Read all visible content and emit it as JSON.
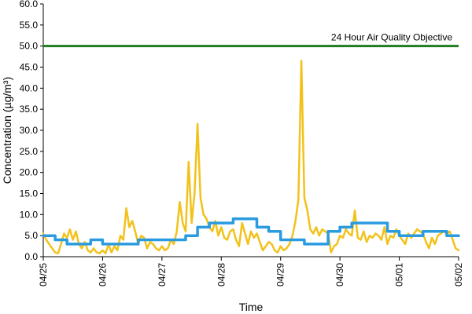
{
  "chart_data": {
    "type": "line",
    "xlabel": "Time",
    "ylabel": "Concentration (µg/m³)",
    "ylim": [
      0,
      60
    ],
    "y_ticks": [
      "0.0",
      "5.0",
      "10.0",
      "15.0",
      "20.0",
      "25.0",
      "30.0",
      "35.0",
      "40.0",
      "45.0",
      "50.0",
      "55.0",
      "60.0"
    ],
    "xlim": [
      0,
      7
    ],
    "x_ticks": [
      {
        "x": 0,
        "label": "04/25"
      },
      {
        "x": 1,
        "label": "04/26"
      },
      {
        "x": 2,
        "label": "04/27"
      },
      {
        "x": 3,
        "label": "04/28"
      },
      {
        "x": 4,
        "label": "04/29"
      },
      {
        "x": 5,
        "label": "04/30"
      },
      {
        "x": 6,
        "label": "05/01"
      },
      {
        "x": 7,
        "label": "05/02"
      }
    ],
    "grid": false,
    "objective": {
      "value": 50,
      "label": "24 Hour Air Quality Objective",
      "color": "#1e7d1e"
    },
    "series": [
      {
        "color": "#f2c21b",
        "x": [
          0,
          0.05,
          0.1,
          0.15,
          0.2,
          0.25,
          0.3,
          0.35,
          0.4,
          0.45,
          0.5,
          0.55,
          0.6,
          0.65,
          0.7,
          0.75,
          0.8,
          0.85,
          0.9,
          0.95,
          1.0,
          1.05,
          1.1,
          1.15,
          1.2,
          1.25,
          1.3,
          1.35,
          1.4,
          1.45,
          1.5,
          1.55,
          1.6,
          1.65,
          1.7,
          1.75,
          1.8,
          1.85,
          1.9,
          1.95,
          2.0,
          2.05,
          2.1,
          2.15,
          2.2,
          2.25,
          2.3,
          2.35,
          2.4,
          2.45,
          2.5,
          2.55,
          2.6,
          2.65,
          2.7,
          2.75,
          2.8,
          2.85,
          2.9,
          2.95,
          3.0,
          3.05,
          3.1,
          3.15,
          3.2,
          3.25,
          3.3,
          3.35,
          3.4,
          3.45,
          3.5,
          3.55,
          3.6,
          3.65,
          3.7,
          3.75,
          3.8,
          3.85,
          3.9,
          3.95,
          4.0,
          4.05,
          4.1,
          4.15,
          4.2,
          4.25,
          4.3,
          4.35,
          4.4,
          4.45,
          4.5,
          4.55,
          4.6,
          4.65,
          4.7,
          4.75,
          4.8,
          4.85,
          4.9,
          4.95,
          5.0,
          5.05,
          5.1,
          5.15,
          5.2,
          5.25,
          5.3,
          5.35,
          5.4,
          5.45,
          5.5,
          5.55,
          5.6,
          5.65,
          5.7,
          5.75,
          5.8,
          5.85,
          5.9,
          5.95,
          6.0,
          6.05,
          6.1,
          6.15,
          6.2,
          6.25,
          6.3,
          6.35,
          6.4,
          6.45,
          6.5,
          6.55,
          6.6,
          6.65,
          6.7,
          6.75,
          6.8,
          6.85,
          6.9,
          6.95,
          7.0
        ],
        "y": [
          5.5,
          4.0,
          3.0,
          2.0,
          1.0,
          0.8,
          3.0,
          5.5,
          4.5,
          6.5,
          4.0,
          6.0,
          3.0,
          2.0,
          3.5,
          1.5,
          1.0,
          2.0,
          1.0,
          0.8,
          1.5,
          0.8,
          3.0,
          1.0,
          2.5,
          1.5,
          5.0,
          4.0,
          11.5,
          7.0,
          8.5,
          6.0,
          3.0,
          5.0,
          4.5,
          2.0,
          3.5,
          3.0,
          2.0,
          1.5,
          2.5,
          1.5,
          2.0,
          4.0,
          3.0,
          6.0,
          13.0,
          8.0,
          6.0,
          22.5,
          8.0,
          15.0,
          31.5,
          14.0,
          10.0,
          9.0,
          7.0,
          6.0,
          8.5,
          5.0,
          7.0,
          4.5,
          4.0,
          6.0,
          6.5,
          4.0,
          2.5,
          8.0,
          5.5,
          3.0,
          6.0,
          4.5,
          5.5,
          3.5,
          1.5,
          2.5,
          3.5,
          3.0,
          1.5,
          1.0,
          2.5,
          1.5,
          2.0,
          3.0,
          5.0,
          8.5,
          13.5,
          46.5,
          14.0,
          11.0,
          6.5,
          5.5,
          7.0,
          5.0,
          6.5,
          6.0,
          5.5,
          1.0,
          2.5,
          3.0,
          5.0,
          4.5,
          6.5,
          5.5,
          5.0,
          11.0,
          4.5,
          4.0,
          6.0,
          3.5,
          5.0,
          4.5,
          5.5,
          5.0,
          4.0,
          7.0,
          3.0,
          5.0,
          4.5,
          6.5,
          5.0,
          4.0,
          3.0,
          5.5,
          4.5,
          5.5,
          6.5,
          6.0,
          5.5,
          3.5,
          2.0,
          4.5,
          3.0,
          5.0,
          5.5,
          6.0,
          5.5,
          6.0,
          4.0,
          2.0,
          1.5
        ]
      },
      {
        "color": "#2b9be0",
        "x": [
          0,
          0.2,
          0.4,
          0.6,
          0.8,
          1.0,
          1.2,
          1.4,
          1.6,
          1.8,
          2.0,
          2.2,
          2.4,
          2.6,
          2.8,
          3.0,
          3.2,
          3.4,
          3.6,
          3.8,
          4.0,
          4.2,
          4.4,
          4.6,
          4.8,
          5.0,
          5.2,
          5.4,
          5.6,
          5.8,
          6.0,
          6.2,
          6.4,
          6.6,
          6.8,
          7.0
        ],
        "y": [
          5,
          4,
          3,
          3,
          4,
          3,
          3,
          3,
          4,
          4,
          4,
          4,
          5,
          7,
          8,
          8,
          9,
          9,
          7,
          6,
          4,
          4,
          3,
          3,
          6,
          7,
          8,
          8,
          8,
          6,
          5,
          5,
          6,
          6,
          5,
          5
        ]
      }
    ]
  }
}
